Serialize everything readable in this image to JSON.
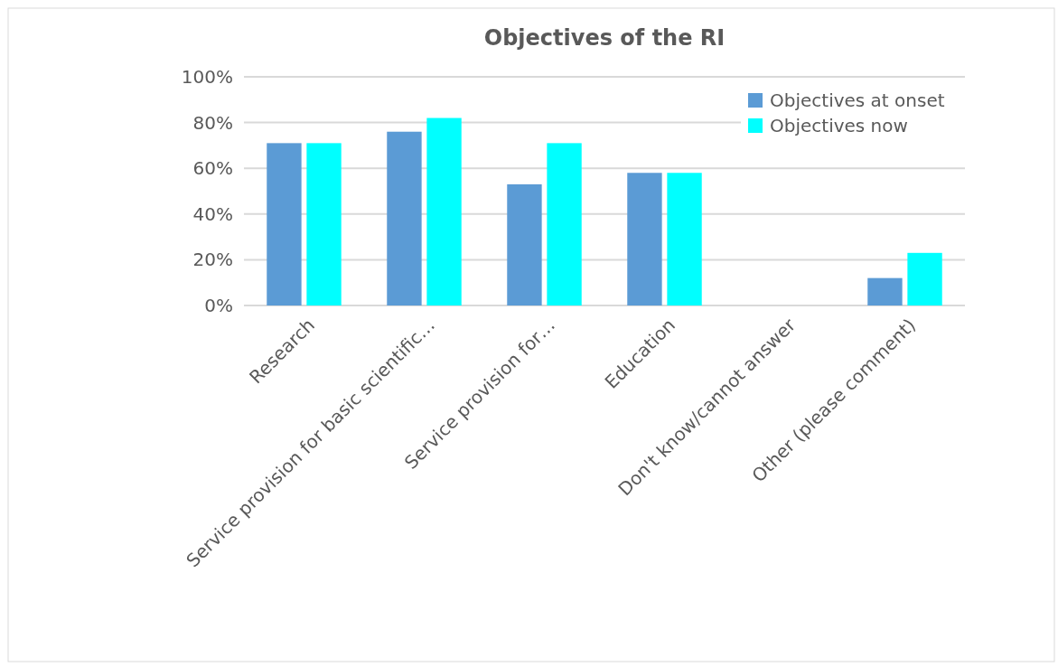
{
  "chart_data": {
    "type": "bar",
    "title": "Objectives of the RI",
    "categories": [
      "Research",
      "Service provision for basic scientific…",
      "Service provision for…",
      "Education",
      "Don't know/cannot answer",
      "Other (please comment)"
    ],
    "series": [
      {
        "name": "Objectives at  onset",
        "color": "#5b9bd5",
        "values": [
          71,
          76,
          53,
          58,
          0,
          12
        ]
      },
      {
        "name": "Objectives now",
        "color": "#00ffff",
        "values": [
          71,
          82,
          71,
          58,
          0,
          23
        ]
      }
    ],
    "ylim": [
      0,
      100
    ],
    "yticks": [
      {
        "value": 0,
        "label": "0%"
      },
      {
        "value": 20,
        "label": "20%"
      },
      {
        "value": 40,
        "label": "40%"
      },
      {
        "value": 60,
        "label": "60%"
      },
      {
        "value": 80,
        "label": "80%"
      },
      {
        "value": 100,
        "label": "100%"
      }
    ],
    "grid": "y",
    "legend": "top right"
  }
}
